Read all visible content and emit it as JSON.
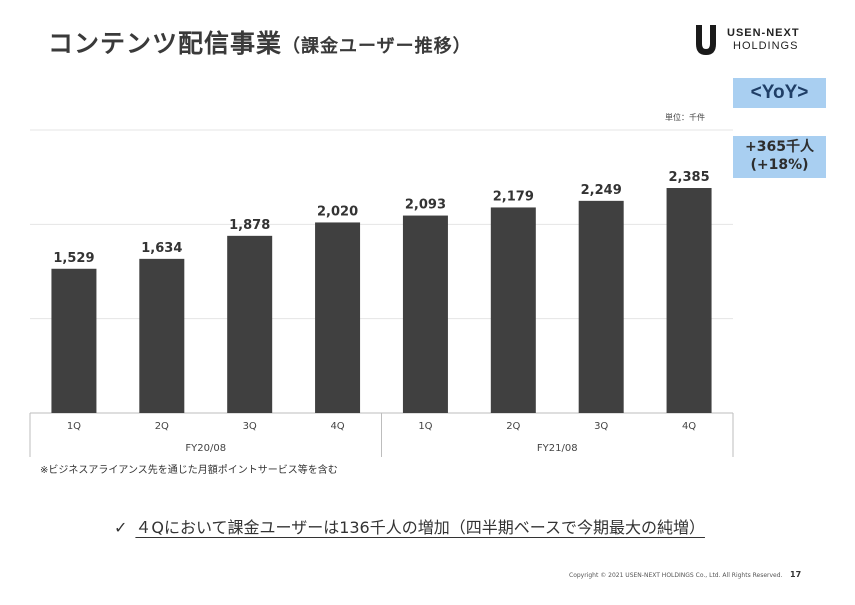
{
  "header": {
    "title": "コンテンツ配信事業",
    "subtitle": "（課金ユーザー推移）"
  },
  "logo": {
    "line1": "USEN-NEXT",
    "line2": "HOLDINGS"
  },
  "yoy": {
    "heading": "<YoY>",
    "line1": "+365千人",
    "line2": "(+18%)",
    "color": "#a9cff1"
  },
  "unit_label": "単位：千件",
  "chart_data": {
    "type": "bar",
    "categories": [
      "1Q",
      "2Q",
      "3Q",
      "4Q",
      "1Q",
      "2Q",
      "3Q",
      "4Q"
    ],
    "groups": [
      {
        "label": "FY20/08",
        "count": 4
      },
      {
        "label": "FY21/08",
        "count": 4
      }
    ],
    "series": [
      {
        "values": [
          1529,
          1634,
          1878,
          2020,
          2093,
          2179,
          2249,
          2385
        ],
        "labels": [
          "1,529",
          "1,634",
          "1,878",
          "2,020",
          "2,093",
          "2,179",
          "2,249",
          "2,385"
        ]
      }
    ],
    "ylim": [
      0,
      3000
    ],
    "grid": true,
    "bar_color": "#404040"
  },
  "footnote": "※ビジネスアライアンス先を通じた月額ポイントサービス等を含む",
  "summary": {
    "check": "✓",
    "text": "４Qにおいて課金ユーザーは136千人の増加（四半期ベースで今期最大の純増）"
  },
  "footer": {
    "copyright": "Copyright © 2021 USEN-NEXT HOLDINGS Co., Ltd. All Rights Reserved.",
    "page": "17"
  }
}
